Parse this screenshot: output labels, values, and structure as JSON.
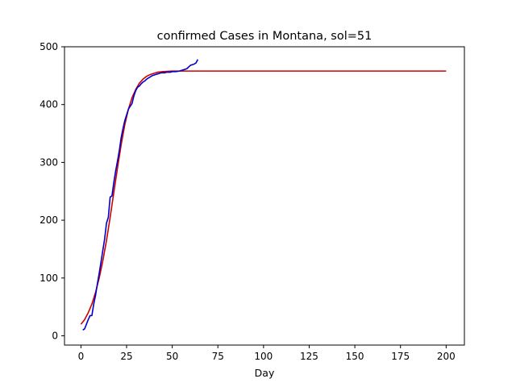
{
  "chart_data": {
    "type": "line",
    "title": "confirmed Cases in Montana, sol=51",
    "xlabel": "Day",
    "ylabel": "",
    "xlim": [
      -9,
      210
    ],
    "ylim": [
      -16,
      500
    ],
    "xticks": [
      0,
      25,
      50,
      75,
      100,
      125,
      150,
      175,
      200
    ],
    "yticks": [
      0,
      100,
      200,
      300,
      400,
      500
    ],
    "grid": false,
    "legend": "none",
    "series": [
      {
        "color": "#cc0000",
        "x": [
          0,
          2,
          4,
          6,
          8,
          10,
          12,
          14,
          16,
          18,
          20,
          22,
          24,
          26,
          28,
          30,
          32,
          34,
          36,
          38,
          40,
          42,
          45,
          50,
          60,
          80,
          120,
          160,
          200
        ],
        "y": [
          20,
          28,
          40,
          55,
          75,
          100,
          130,
          165,
          205,
          248,
          290,
          330,
          365,
          392,
          412,
          426,
          437,
          444,
          449,
          452,
          454,
          456,
          457,
          458,
          458,
          458,
          458,
          458,
          458
        ]
      },
      {
        "color": "#0000cc",
        "x": [
          1,
          2,
          3,
          4,
          5,
          6,
          7,
          8,
          9,
          10,
          11,
          12,
          13,
          14,
          15,
          16,
          17,
          18,
          19,
          20,
          21,
          22,
          23,
          24,
          25,
          26,
          27,
          28,
          29,
          30,
          31,
          32,
          33,
          34,
          35,
          36,
          37,
          38,
          39,
          40,
          41,
          42,
          43,
          44,
          45,
          46,
          47,
          48,
          49,
          50,
          52,
          54,
          56,
          58,
          59,
          60,
          61,
          62,
          63,
          64
        ],
        "y": [
          10,
          12,
          20,
          28,
          35,
          35,
          55,
          70,
          90,
          108,
          128,
          148,
          168,
          195,
          205,
          240,
          242,
          265,
          285,
          302,
          320,
          342,
          358,
          372,
          382,
          392,
          397,
          402,
          415,
          424,
          430,
          432,
          436,
          439,
          441,
          444,
          446,
          448,
          450,
          451,
          452,
          453,
          454,
          455,
          455,
          455,
          456,
          456,
          456,
          457,
          457,
          458,
          460,
          462,
          465,
          468,
          469,
          470,
          472,
          478
        ]
      }
    ]
  }
}
